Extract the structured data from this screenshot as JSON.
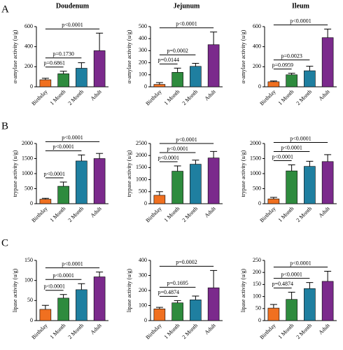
{
  "panel_labels": [
    "A",
    "B",
    "C"
  ],
  "chart_data": [
    {
      "type": "bar",
      "title": "Doudenum",
      "ylabel": "α-amylase activity (u/g)",
      "categories": [
        "Birthday",
        "1 Month",
        "2 Month",
        "Adult"
      ],
      "values": [
        70,
        130,
        185,
        360
      ],
      "errors": [
        15,
        25,
        55,
        175
      ],
      "colors": [
        "#f07020",
        "#2e8b3e",
        "#1f7fa0",
        "#7b2a8c"
      ],
      "ylim": [
        0,
        600
      ],
      "yticks": [
        0,
        200,
        400,
        600
      ],
      "annotations": [
        {
          "label": "p=0.6861",
          "between": [
            "Birthday",
            "1 Month"
          ]
        },
        {
          "label": "p=0.1730",
          "between": [
            "Birthday",
            "2 Month"
          ]
        },
        {
          "label": "p<0.0001",
          "between": [
            "Birthday",
            "Adult"
          ]
        }
      ]
    },
    {
      "type": "bar",
      "title": "Jejunum",
      "ylabel": "α-amylase activity (u/g)",
      "categories": [
        "Birthday",
        "1 Month",
        "2 Month",
        "Adult"
      ],
      "values": [
        20,
        120,
        170,
        350
      ],
      "errors": [
        15,
        35,
        25,
        105
      ],
      "colors": [
        "#f07020",
        "#2e8b3e",
        "#1f7fa0",
        "#7b2a8c"
      ],
      "ylim": [
        0,
        500
      ],
      "yticks": [
        0,
        100,
        200,
        300,
        400,
        500
      ],
      "annotations": [
        {
          "label": "p=0.0144",
          "between": [
            "Birthday",
            "1 Month"
          ]
        },
        {
          "label": "p=0.0002",
          "between": [
            "Birthday",
            "2 Month"
          ]
        },
        {
          "label": "p<0.0001",
          "between": [
            "Birthday",
            "Adult"
          ]
        }
      ]
    },
    {
      "type": "bar",
      "title": "Ileum",
      "ylabel": "α-amylase activity (u/g)",
      "categories": [
        "Birthday",
        "1 Month",
        "2 Month",
        "Adult"
      ],
      "values": [
        50,
        120,
        160,
        490
      ],
      "errors": [
        8,
        15,
        45,
        85
      ],
      "colors": [
        "#f07020",
        "#2e8b3e",
        "#1f7fa0",
        "#7b2a8c"
      ],
      "ylim": [
        0,
        600
      ],
      "yticks": [
        0,
        200,
        400,
        600
      ],
      "annotations": [
        {
          "label": "p=0.0959",
          "between": [
            "Birthday",
            "1 Month"
          ]
        },
        {
          "label": "p=0.0023",
          "between": [
            "Birthday",
            "2 Month"
          ]
        },
        {
          "label": "p<0.0001",
          "between": [
            "Birthday",
            "Adult"
          ]
        }
      ]
    },
    {
      "type": "bar",
      "ylabel": "trypase activity (u/g)",
      "categories": [
        "Birthday",
        "1 Month",
        "2 Month",
        "Adult"
      ],
      "values": [
        150,
        580,
        1420,
        1500
      ],
      "errors": [
        30,
        140,
        200,
        170
      ],
      "colors": [
        "#f07020",
        "#2e8b3e",
        "#1f7fa0",
        "#7b2a8c"
      ],
      "ylim": [
        0,
        2000
      ],
      "yticks": [
        0,
        500,
        1000,
        1500,
        2000
      ],
      "annotations": [
        {
          "label": "p<0.0001",
          "between": [
            "Birthday",
            "1 Month"
          ]
        },
        {
          "label": "p<0.0001",
          "between": [
            "Birthday",
            "2 Month"
          ]
        },
        {
          "label": "p<0.0001",
          "between": [
            "Birthday",
            "Adult"
          ]
        }
      ]
    },
    {
      "type": "bar",
      "ylabel": "trypase activity (u/g)",
      "categories": [
        "Birthday",
        "1 Month",
        "2 Month",
        "Adult"
      ],
      "values": [
        350,
        1350,
        1640,
        1900
      ],
      "errors": [
        150,
        220,
        170,
        270
      ],
      "colors": [
        "#f07020",
        "#2e8b3e",
        "#1f7fa0",
        "#7b2a8c"
      ],
      "ylim": [
        0,
        2500
      ],
      "yticks": [
        0,
        500,
        1000,
        1500,
        2000,
        2500
      ],
      "annotations": [
        {
          "label": "p<0.0001",
          "between": [
            "Birthday",
            "1 Month"
          ]
        },
        {
          "label": "p<0.0001",
          "between": [
            "Birthday",
            "2 Month"
          ]
        },
        {
          "label": "p<0.0001",
          "between": [
            "Birthday",
            "Adult"
          ]
        }
      ]
    },
    {
      "type": "bar",
      "ylabel": "trypase activity (u/g)",
      "categories": [
        "Birthday",
        "1 Month",
        "2 Month",
        "Adult"
      ],
      "values": [
        160,
        1090,
        1240,
        1400
      ],
      "errors": [
        50,
        200,
        170,
        230
      ],
      "colors": [
        "#f07020",
        "#2e8b3e",
        "#1f7fa0",
        "#7b2a8c"
      ],
      "ylim": [
        0,
        2000
      ],
      "yticks": [
        0,
        500,
        1000,
        1500,
        2000
      ],
      "annotations": [
        {
          "label": "p<0.0001",
          "between": [
            "Birthday",
            "1 Month"
          ]
        },
        {
          "label": "p<0.0001",
          "between": [
            "Birthday",
            "2 Month"
          ]
        },
        {
          "label": "p<0.0001",
          "between": [
            "Birthday",
            "Adult"
          ]
        }
      ]
    },
    {
      "type": "bar",
      "ylabel": "lipase activity (u/g)",
      "categories": [
        "Birthday",
        "1 Month",
        "2 Month",
        "Adult"
      ],
      "values": [
        28,
        56,
        77,
        109
      ],
      "errors": [
        10,
        9,
        15,
        12
      ],
      "colors": [
        "#f07020",
        "#2e8b3e",
        "#1f7fa0",
        "#7b2a8c"
      ],
      "ylim": [
        0,
        150
      ],
      "yticks": [
        0,
        50,
        100,
        150
      ],
      "annotations": [
        {
          "label": "p<0.0001",
          "between": [
            "Birthday",
            "1 Month"
          ]
        },
        {
          "label": "p<0.0001",
          "between": [
            "Birthday",
            "2 Month"
          ]
        },
        {
          "label": "p<0.0001",
          "between": [
            "Birthday",
            "Adult"
          ]
        }
      ]
    },
    {
      "type": "bar",
      "ylabel": "lipase activity (u/g)",
      "categories": [
        "Birthday",
        "1 Month",
        "2 Month",
        "Adult"
      ],
      "values": [
        78,
        118,
        138,
        218
      ],
      "errors": [
        10,
        15,
        25,
        115
      ],
      "colors": [
        "#f07020",
        "#2e8b3e",
        "#1f7fa0",
        "#7b2a8c"
      ],
      "ylim": [
        0,
        400
      ],
      "yticks": [
        0,
        100,
        200,
        300,
        400
      ],
      "annotations": [
        {
          "label": "p=0.4874",
          "between": [
            "Birthday",
            "1 Month"
          ]
        },
        {
          "label": "p=0.1695",
          "between": [
            "Birthday",
            "2 Month"
          ]
        },
        {
          "label": "p=0.0002",
          "between": [
            "Birthday",
            "Adult"
          ]
        }
      ]
    },
    {
      "type": "bar",
      "ylabel": "lipase activity (u/g)",
      "categories": [
        "Birthday",
        "1 Month",
        "2 Month",
        "Adult"
      ],
      "values": [
        52,
        88,
        133,
        163
      ],
      "errors": [
        15,
        30,
        25,
        42
      ],
      "colors": [
        "#f07020",
        "#2e8b3e",
        "#1f7fa0",
        "#7b2a8c"
      ],
      "ylim": [
        0,
        250
      ],
      "yticks": [
        0,
        50,
        100,
        150,
        200,
        250
      ],
      "annotations": [
        {
          "label": "p=0.4874",
          "between": [
            "Birthday",
            "1 Month"
          ]
        },
        {
          "label": "p<0.0001",
          "between": [
            "Birthday",
            "2 Month"
          ]
        },
        {
          "label": "p<0.0001",
          "between": [
            "Birthday",
            "Adult"
          ]
        }
      ]
    }
  ]
}
